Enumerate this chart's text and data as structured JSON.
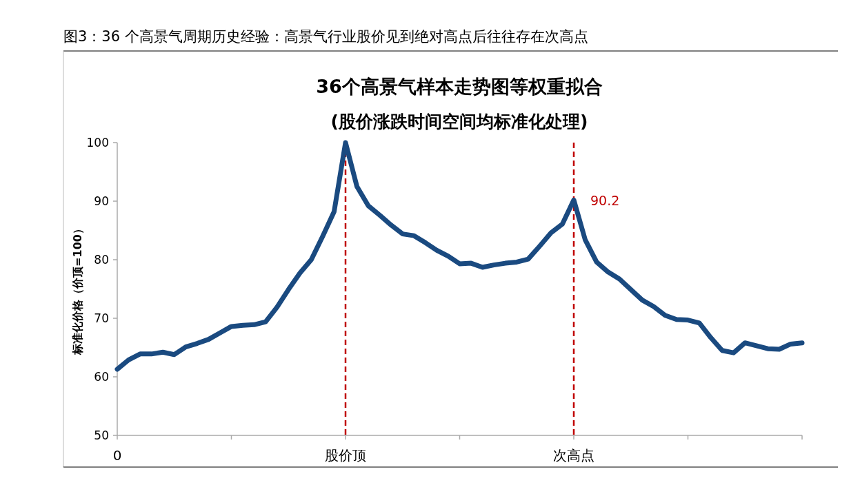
{
  "chart_data": {
    "type": "line",
    "title": "36个高景气样本走势图等权重拟合",
    "subtitle": "(股价涨跌时间空间均标准化处理)",
    "ylabel": "标准化价格（价顶=100）",
    "annotations": [
      "图3：36 个高景气周期历史经验：高景气行业股价见到绝对高点后往往存在次高点",
      {
        "text": "90.2",
        "x": "次高点",
        "y": 90.2
      }
    ],
    "categories": [
      "0",
      null,
      null,
      null,
      null,
      null,
      null,
      null,
      null,
      null,
      null,
      null,
      null,
      null,
      null,
      null,
      null,
      null,
      null,
      null,
      "股价顶",
      null,
      null,
      null,
      null,
      null,
      null,
      null,
      null,
      null,
      null,
      null,
      null,
      null,
      null,
      null,
      null,
      null,
      null,
      null,
      "次高点",
      null,
      null,
      null,
      null,
      null,
      null,
      null,
      null,
      null,
      null,
      null,
      null,
      null,
      null,
      null,
      null,
      null,
      null,
      null,
      null
    ],
    "ylim": [
      50,
      100
    ],
    "yticks": [
      50,
      60,
      70,
      80,
      90,
      100
    ],
    "grid": false,
    "ref_lines": [
      {
        "axis": "x",
        "value": "股价顶",
        "color": "#c00000",
        "line_style": "dashed"
      },
      {
        "axis": "x",
        "value": "次高点",
        "color": "#c00000",
        "line_style": "dashed"
      }
    ],
    "series": [
      {
        "color": "#1a4a80",
        "values": [
          61.3,
          62.9,
          63.9,
          63.9,
          64.2,
          63.8,
          65.1,
          65.7,
          66.4,
          67.5,
          68.6,
          68.8,
          68.9,
          69.4,
          71.9,
          74.9,
          77.7,
          80,
          84,
          88.2,
          100,
          92.5,
          89.2,
          87.6,
          85.9,
          84.4,
          84.1,
          82.9,
          81.6,
          80.6,
          79.3,
          79.4,
          78.7,
          79.1,
          79.4,
          79.6,
          80.1,
          82.3,
          84.6,
          86.1,
          90.2,
          83.4,
          79.6,
          77.9,
          76.7,
          74.9,
          73.1,
          72,
          70.5,
          69.8,
          69.7,
          69.2,
          66.7,
          64.5,
          64.1,
          65.8,
          65.3,
          64.8,
          64.7,
          65.6,
          65.8
        ]
      }
    ]
  }
}
